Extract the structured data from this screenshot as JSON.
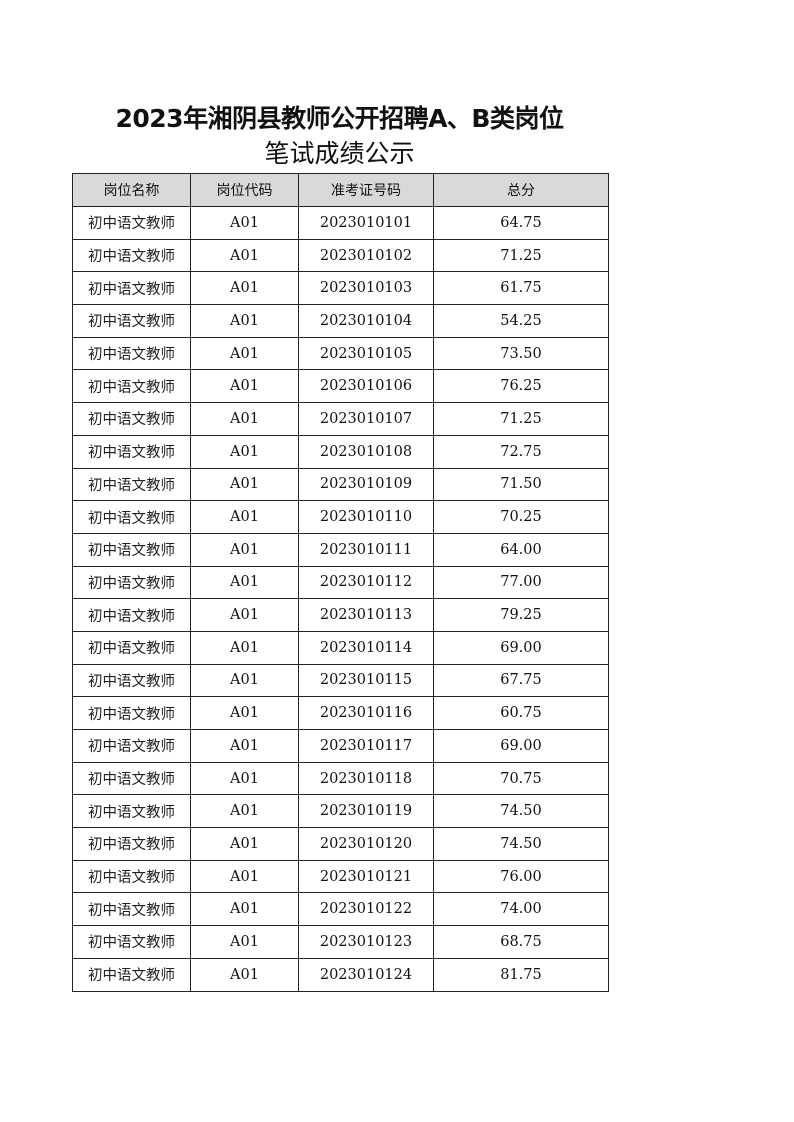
{
  "title": {
    "line1": "2023年湘阴县教师公开招聘A、B类岗位",
    "line2": "笔试成绩公示"
  },
  "table": {
    "headers": [
      "岗位名称",
      "岗位代码",
      "准考证号码",
      "总分"
    ],
    "rows": [
      [
        "初中语文教师",
        "A01",
        "2023010101",
        "64.75"
      ],
      [
        "初中语文教师",
        "A01",
        "2023010102",
        "71.25"
      ],
      [
        "初中语文教师",
        "A01",
        "2023010103",
        "61.75"
      ],
      [
        "初中语文教师",
        "A01",
        "2023010104",
        "54.25"
      ],
      [
        "初中语文教师",
        "A01",
        "2023010105",
        "73.50"
      ],
      [
        "初中语文教师",
        "A01",
        "2023010106",
        "76.25"
      ],
      [
        "初中语文教师",
        "A01",
        "2023010107",
        "71.25"
      ],
      [
        "初中语文教师",
        "A01",
        "2023010108",
        "72.75"
      ],
      [
        "初中语文教师",
        "A01",
        "2023010109",
        "71.50"
      ],
      [
        "初中语文教师",
        "A01",
        "2023010110",
        "70.25"
      ],
      [
        "初中语文教师",
        "A01",
        "2023010111",
        "64.00"
      ],
      [
        "初中语文教师",
        "A01",
        "2023010112",
        "77.00"
      ],
      [
        "初中语文教师",
        "A01",
        "2023010113",
        "79.25"
      ],
      [
        "初中语文教师",
        "A01",
        "2023010114",
        "69.00"
      ],
      [
        "初中语文教师",
        "A01",
        "2023010115",
        "67.75"
      ],
      [
        "初中语文教师",
        "A01",
        "2023010116",
        "60.75"
      ],
      [
        "初中语文教师",
        "A01",
        "2023010117",
        "69.00"
      ],
      [
        "初中语文教师",
        "A01",
        "2023010118",
        "70.75"
      ],
      [
        "初中语文教师",
        "A01",
        "2023010119",
        "74.50"
      ],
      [
        "初中语文教师",
        "A01",
        "2023010120",
        "74.50"
      ],
      [
        "初中语文教师",
        "A01",
        "2023010121",
        "76.00"
      ],
      [
        "初中语文教师",
        "A01",
        "2023010122",
        "74.00"
      ],
      [
        "初中语文教师",
        "A01",
        "2023010123",
        "68.75"
      ],
      [
        "初中语文教师",
        "A01",
        "2023010124",
        "81.75"
      ]
    ]
  }
}
